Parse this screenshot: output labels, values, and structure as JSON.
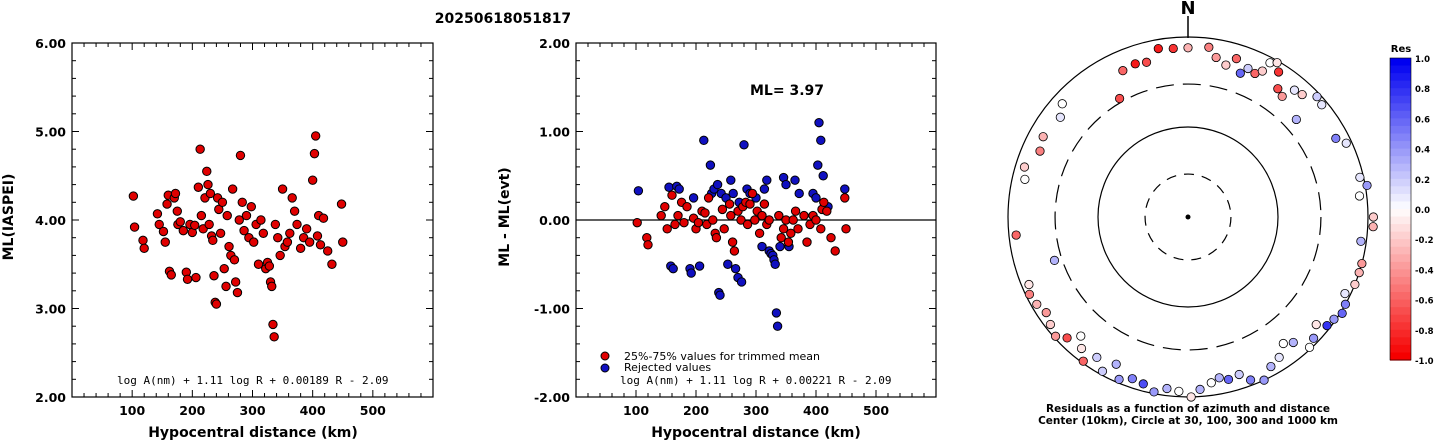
{
  "title": "20250618051817",
  "chart_data": [
    {
      "type": "scatter",
      "xlabel": "Hypocentral distance (km)",
      "ylabel": "ML(IASPEI)",
      "xlim": [
        0,
        600
      ],
      "ylim": [
        2.0,
        6.0
      ],
      "xticks": [
        "100",
        "200",
        "300",
        "400",
        "500"
      ],
      "yticks": [
        "2.00",
        "3.00",
        "4.00",
        "5.00",
        "6.00"
      ],
      "formula": "log A(nm) + 1.11 log R + 0.00189 R - 2.09",
      "point_color": "#e00000",
      "points": [
        [
          102,
          4.27
        ],
        [
          104,
          3.92
        ],
        [
          118,
          3.77
        ],
        [
          120,
          3.68
        ],
        [
          142,
          4.07
        ],
        [
          145,
          3.95
        ],
        [
          152,
          3.87
        ],
        [
          155,
          3.75
        ],
        [
          158,
          4.18
        ],
        [
          160,
          4.28
        ],
        [
          162,
          3.42
        ],
        [
          165,
          3.38
        ],
        [
          170,
          4.25
        ],
        [
          172,
          4.3
        ],
        [
          175,
          4.1
        ],
        [
          176,
          3.95
        ],
        [
          180,
          3.98
        ],
        [
          185,
          3.88
        ],
        [
          190,
          3.41
        ],
        [
          192,
          3.33
        ],
        [
          196,
          3.95
        ],
        [
          200,
          3.86
        ],
        [
          204,
          3.94
        ],
        [
          206,
          3.35
        ],
        [
          210,
          4.37
        ],
        [
          213,
          4.8
        ],
        [
          215,
          4.05
        ],
        [
          218,
          3.9
        ],
        [
          221,
          4.25
        ],
        [
          224,
          4.55
        ],
        [
          226,
          4.4
        ],
        [
          228,
          3.95
        ],
        [
          230,
          4.3
        ],
        [
          232,
          3.82
        ],
        [
          234,
          3.77
        ],
        [
          236,
          3.37
        ],
        [
          238,
          3.07
        ],
        [
          240,
          3.05
        ],
        [
          242,
          4.25
        ],
        [
          244,
          4.12
        ],
        [
          247,
          3.85
        ],
        [
          250,
          4.2
        ],
        [
          253,
          3.45
        ],
        [
          256,
          3.25
        ],
        [
          258,
          4.05
        ],
        [
          261,
          3.7
        ],
        [
          264,
          3.6
        ],
        [
          267,
          4.35
        ],
        [
          270,
          3.55
        ],
        [
          272,
          3.3
        ],
        [
          275,
          3.18
        ],
        [
          278,
          4.0
        ],
        [
          280,
          4.73
        ],
        [
          283,
          4.2
        ],
        [
          286,
          3.88
        ],
        [
          290,
          4.05
        ],
        [
          294,
          3.8
        ],
        [
          298,
          4.15
        ],
        [
          302,
          3.75
        ],
        [
          306,
          3.95
        ],
        [
          310,
          3.5
        ],
        [
          314,
          4.0
        ],
        [
          318,
          3.85
        ],
        [
          322,
          3.45
        ],
        [
          325,
          3.52
        ],
        [
          328,
          3.48
        ],
        [
          330,
          3.3
        ],
        [
          332,
          3.25
        ],
        [
          334,
          2.82
        ],
        [
          336,
          2.68
        ],
        [
          338,
          3.95
        ],
        [
          342,
          3.8
        ],
        [
          346,
          3.6
        ],
        [
          350,
          4.35
        ],
        [
          354,
          3.7
        ],
        [
          358,
          3.75
        ],
        [
          362,
          3.85
        ],
        [
          366,
          4.25
        ],
        [
          370,
          4.1
        ],
        [
          374,
          3.95
        ],
        [
          380,
          3.68
        ],
        [
          385,
          3.8
        ],
        [
          390,
          3.9
        ],
        [
          395,
          3.75
        ],
        [
          400,
          4.45
        ],
        [
          403,
          4.75
        ],
        [
          405,
          4.95
        ],
        [
          408,
          3.82
        ],
        [
          410,
          4.05
        ],
        [
          413,
          3.72
        ],
        [
          418,
          4.02
        ],
        [
          425,
          3.65
        ],
        [
          432,
          3.5
        ],
        [
          448,
          4.18
        ],
        [
          450,
          3.75
        ]
      ]
    },
    {
      "type": "scatter",
      "xlabel": "Hypocentral distance (km)",
      "ylabel": "ML - ML(evt)",
      "xlim": [
        0,
        600
      ],
      "ylim": [
        -2.0,
        2.0
      ],
      "xticks": [
        "100",
        "200",
        "300",
        "400",
        "500"
      ],
      "yticks": [
        "-2.00",
        "-1.00",
        "0.00",
        "1.00",
        "2.00"
      ],
      "ml_label": "ML= 3.97",
      "formula": "log A(nm) + 1.11 log R + 0.00221 R - 2.09",
      "legend": [
        {
          "label": "25%-75% values for trimmed mean",
          "color": "#e00000"
        },
        {
          "label": "Rejected values",
          "color": "#1010c0"
        }
      ],
      "red_points": [
        [
          102,
          -0.03
        ],
        [
          118,
          -0.2
        ],
        [
          120,
          -0.28
        ],
        [
          142,
          0.05
        ],
        [
          148,
          0.15
        ],
        [
          152,
          -0.1
        ],
        [
          160,
          0.28
        ],
        [
          165,
          -0.05
        ],
        [
          170,
          0.05
        ],
        [
          176,
          0.2
        ],
        [
          180,
          -0.03
        ],
        [
          185,
          0.15
        ],
        [
          196,
          0.02
        ],
        [
          200,
          -0.1
        ],
        [
          204,
          -0.03
        ],
        [
          210,
          0.1
        ],
        [
          215,
          0.08
        ],
        [
          218,
          -0.05
        ],
        [
          221,
          0.25
        ],
        [
          228,
          0.0
        ],
        [
          232,
          -0.15
        ],
        [
          234,
          -0.2
        ],
        [
          244,
          0.12
        ],
        [
          247,
          -0.1
        ],
        [
          256,
          0.18
        ],
        [
          258,
          0.05
        ],
        [
          261,
          -0.25
        ],
        [
          264,
          -0.35
        ],
        [
          270,
          0.1
        ],
        [
          275,
          0.0
        ],
        [
          278,
          0.15
        ],
        [
          283,
          0.2
        ],
        [
          286,
          -0.05
        ],
        [
          290,
          0.18
        ],
        [
          294,
          0.3
        ],
        [
          298,
          0.0
        ],
        [
          302,
          0.1
        ],
        [
          306,
          -0.15
        ],
        [
          310,
          0.05
        ],
        [
          314,
          0.18
        ],
        [
          318,
          -0.05
        ],
        [
          322,
          0.0
        ],
        [
          338,
          0.05
        ],
        [
          342,
          -0.2
        ],
        [
          346,
          -0.1
        ],
        [
          350,
          0.0
        ],
        [
          354,
          -0.25
        ],
        [
          358,
          -0.15
        ],
        [
          362,
          0.0
        ],
        [
          366,
          0.1
        ],
        [
          370,
          -0.1
        ],
        [
          380,
          0.05
        ],
        [
          385,
          -0.25
        ],
        [
          390,
          -0.05
        ],
        [
          395,
          0.05
        ],
        [
          400,
          0.0
        ],
        [
          408,
          -0.1
        ],
        [
          410,
          0.12
        ],
        [
          413,
          0.2
        ],
        [
          418,
          0.1
        ],
        [
          425,
          -0.2
        ],
        [
          432,
          -0.35
        ],
        [
          448,
          0.25
        ],
        [
          450,
          -0.1
        ]
      ],
      "blue_points": [
        [
          104,
          0.33
        ],
        [
          155,
          0.37
        ],
        [
          158,
          -0.52
        ],
        [
          162,
          -0.55
        ],
        [
          168,
          0.38
        ],
        [
          172,
          0.35
        ],
        [
          190,
          -0.55
        ],
        [
          192,
          -0.6
        ],
        [
          196,
          0.25
        ],
        [
          206,
          -0.52
        ],
        [
          213,
          0.9
        ],
        [
          224,
          0.62
        ],
        [
          226,
          0.3
        ],
        [
          230,
          0.35
        ],
        [
          236,
          0.4
        ],
        [
          238,
          -0.82
        ],
        [
          240,
          -0.85
        ],
        [
          242,
          0.3
        ],
        [
          250,
          0.25
        ],
        [
          253,
          -0.5
        ],
        [
          258,
          0.45
        ],
        [
          262,
          0.3
        ],
        [
          266,
          -0.55
        ],
        [
          270,
          -0.65
        ],
        [
          272,
          0.2
        ],
        [
          276,
          -0.7
        ],
        [
          280,
          0.85
        ],
        [
          285,
          0.35
        ],
        [
          290,
          0.3
        ],
        [
          300,
          0.25
        ],
        [
          310,
          -0.3
        ],
        [
          314,
          0.35
        ],
        [
          318,
          0.45
        ],
        [
          322,
          -0.35
        ],
        [
          325,
          -0.38
        ],
        [
          328,
          -0.4
        ],
        [
          330,
          -0.45
        ],
        [
          332,
          -0.5
        ],
        [
          334,
          -1.05
        ],
        [
          336,
          -1.2
        ],
        [
          340,
          -0.3
        ],
        [
          346,
          0.48
        ],
        [
          350,
          0.4
        ],
        [
          355,
          -0.3
        ],
        [
          365,
          0.45
        ],
        [
          372,
          0.3
        ],
        [
          395,
          0.3
        ],
        [
          400,
          0.25
        ],
        [
          403,
          0.62
        ],
        [
          405,
          1.1
        ],
        [
          408,
          0.9
        ],
        [
          412,
          0.5
        ],
        [
          420,
          0.15
        ],
        [
          448,
          0.35
        ]
      ]
    },
    {
      "type": "polar",
      "north_label": "N",
      "caption_line1": "Residuals as a function of azimuth and distance",
      "caption_line2": "Center (10km), Circle at 30, 100, 300 and 1000 km",
      "colorbar_title": "Res",
      "colorbar_ticks": [
        "1.0",
        "0.8",
        "0.6",
        "0.4",
        "0.2",
        "0.0",
        "-0.2",
        "-0.4",
        "-0.6",
        "-0.8",
        "-1.0"
      ],
      "rings_km": [
        30,
        100,
        300,
        1000
      ],
      "ring_styles": [
        "dashed",
        "solid",
        "dashed",
        "solid"
      ],
      "stations": [
        {
          "az": 355,
          "d": 0.94,
          "res": -0.8
        },
        {
          "az": 350,
          "d": 0.95,
          "res": -0.9
        },
        {
          "az": 345,
          "d": 0.89,
          "res": -0.7
        },
        {
          "az": 341,
          "d": 0.9,
          "res": -0.9
        },
        {
          "az": 336,
          "d": 0.89,
          "res": -0.6
        },
        {
          "az": 330,
          "d": 0.76,
          "res": -0.7
        },
        {
          "az": 0,
          "d": 0.94,
          "res": -0.3
        },
        {
          "az": 7,
          "d": 0.95,
          "res": -0.5
        },
        {
          "az": 10,
          "d": 0.9,
          "res": -0.4
        },
        {
          "az": 14,
          "d": 0.87,
          "res": -0.2
        },
        {
          "az": 17,
          "d": 0.92,
          "res": -0.6
        },
        {
          "az": 20,
          "d": 0.85,
          "res": 0.6
        },
        {
          "az": 22,
          "d": 0.89,
          "res": 0.2
        },
        {
          "az": 25,
          "d": 0.88,
          "res": -0.6
        },
        {
          "az": 27,
          "d": 0.91,
          "res": -0.2
        },
        {
          "az": 28,
          "d": 0.97,
          "res": 0.0
        },
        {
          "az": 30,
          "d": 0.99,
          "res": -0.1
        },
        {
          "az": 32,
          "d": 0.95,
          "res": -0.8
        },
        {
          "az": 35,
          "d": 0.87,
          "res": -0.7
        },
        {
          "az": 38,
          "d": 0.85,
          "res": -0.4
        },
        {
          "az": 40,
          "d": 0.92,
          "res": 0.1
        },
        {
          "az": 43,
          "d": 0.93,
          "res": -0.2
        },
        {
          "az": 47,
          "d": 0.98,
          "res": 0.2
        },
        {
          "az": 50,
          "d": 0.97,
          "res": 0.1
        },
        {
          "az": 48,
          "d": 0.81,
          "res": 0.3
        },
        {
          "az": 62,
          "d": 0.93,
          "res": 0.5
        },
        {
          "az": 65,
          "d": 0.97,
          "res": 0.1
        },
        {
          "az": 77,
          "d": 0.98,
          "res": 0.1
        },
        {
          "az": 80,
          "d": 1.01,
          "res": 0.4
        },
        {
          "az": 83,
          "d": 0.96,
          "res": 0.0
        },
        {
          "az": 90,
          "d": 1.03,
          "res": -0.2
        },
        {
          "az": 93,
          "d": 1.03,
          "res": -0.3
        },
        {
          "az": 98,
          "d": 0.97,
          "res": 0.3
        },
        {
          "az": 105,
          "d": 1.0,
          "res": -0.4
        },
        {
          "az": 108,
          "d": 1.0,
          "res": -0.3
        },
        {
          "az": 112,
          "d": 1.0,
          "res": -0.2
        },
        {
          "az": 116,
          "d": 0.97,
          "res": 0.1
        },
        {
          "az": 119,
          "d": 1.0,
          "res": 0.5
        },
        {
          "az": 122,
          "d": 1.01,
          "res": 0.6
        },
        {
          "az": 125,
          "d": 0.99,
          "res": 0.4
        },
        {
          "az": 128,
          "d": 0.98,
          "res": 0.8
        },
        {
          "az": 130,
          "d": 0.93,
          "res": -0.1
        },
        {
          "az": 134,
          "d": 0.97,
          "res": 0.4
        },
        {
          "az": 137,
          "d": 0.99,
          "res": 0.0
        },
        {
          "az": 140,
          "d": 0.91,
          "res": 0.3
        },
        {
          "az": 143,
          "d": 0.88,
          "res": 0.0
        },
        {
          "az": 147,
          "d": 0.93,
          "res": 0.1
        },
        {
          "az": 151,
          "d": 0.95,
          "res": 0.3
        },
        {
          "az": 155,
          "d": 1.0,
          "res": 0.4
        },
        {
          "az": 159,
          "d": 0.97,
          "res": 0.5
        },
        {
          "az": 162,
          "d": 0.92,
          "res": 0.2
        },
        {
          "az": 166,
          "d": 0.93,
          "res": 0.6
        },
        {
          "az": 169,
          "d": 0.91,
          "res": 0.3
        },
        {
          "az": 172,
          "d": 0.93,
          "res": 0.0
        },
        {
          "az": 176,
          "d": 0.96,
          "res": 0.3
        },
        {
          "az": 179,
          "d": 1.0,
          "res": -0.1
        },
        {
          "az": 183,
          "d": 0.97,
          "res": 0.0
        },
        {
          "az": 187,
          "d": 0.96,
          "res": 0.3
        },
        {
          "az": 191,
          "d": 0.99,
          "res": 0.4
        },
        {
          "az": 195,
          "d": 0.96,
          "res": 0.7
        },
        {
          "az": 199,
          "d": 0.95,
          "res": 0.5
        },
        {
          "az": 203,
          "d": 0.98,
          "res": 0.4
        },
        {
          "az": 206,
          "d": 0.91,
          "res": 0.3
        },
        {
          "az": 209,
          "d": 0.98,
          "res": 0.2
        },
        {
          "az": 213,
          "d": 0.93,
          "res": 0.2
        },
        {
          "az": 216,
          "d": 0.99,
          "res": -0.6
        },
        {
          "az": 219,
          "d": 0.94,
          "res": -0.1
        },
        {
          "az": 222,
          "d": 0.89,
          "res": 0.0
        },
        {
          "az": 225,
          "d": 0.95,
          "res": -0.7
        },
        {
          "az": 228,
          "d": 0.99,
          "res": -0.4
        },
        {
          "az": 232,
          "d": 0.97,
          "res": -0.2
        },
        {
          "az": 236,
          "d": 0.95,
          "res": -0.4
        },
        {
          "az": 240,
          "d": 0.97,
          "res": -0.3
        },
        {
          "az": 244,
          "d": 0.98,
          "res": -0.5
        },
        {
          "az": 247,
          "d": 0.96,
          "res": -0.1
        },
        {
          "az": 252,
          "d": 0.78,
          "res": 0.3
        },
        {
          "az": 264,
          "d": 0.96,
          "res": -0.6
        },
        {
          "az": 283,
          "d": 0.93,
          "res": 0.0
        },
        {
          "az": 287,
          "d": 0.95,
          "res": -0.2
        },
        {
          "az": 294,
          "d": 0.9,
          "res": -0.5
        },
        {
          "az": 299,
          "d": 0.92,
          "res": -0.3
        },
        {
          "az": 308,
          "d": 0.9,
          "res": 0.1
        },
        {
          "az": 312,
          "d": 0.94,
          "res": 0.0
        }
      ]
    }
  ]
}
